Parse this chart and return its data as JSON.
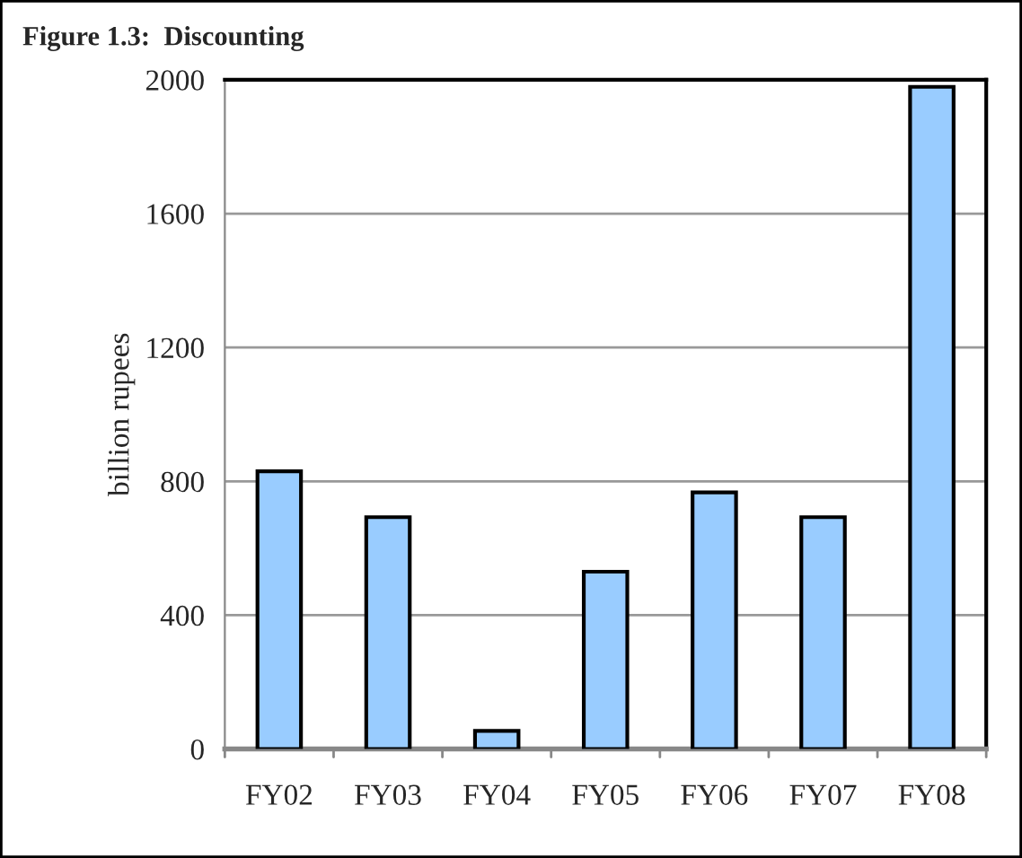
{
  "chart_data": {
    "type": "bar",
    "title": "Figure 1.3:  Discounting",
    "ylabel": "billion rupees",
    "categories": [
      "FY02",
      "FY03",
      "FY04",
      "FY05",
      "FY06",
      "FY07",
      "FY08"
    ],
    "values": [
      830,
      693,
      54,
      530,
      767,
      693,
      1979
    ],
    "color": "#99ccff",
    "ylim": [
      0,
      2000
    ],
    "yticks": [
      0,
      400,
      800,
      1200,
      1600,
      2000
    ],
    "grid": "y",
    "legend": false
  }
}
